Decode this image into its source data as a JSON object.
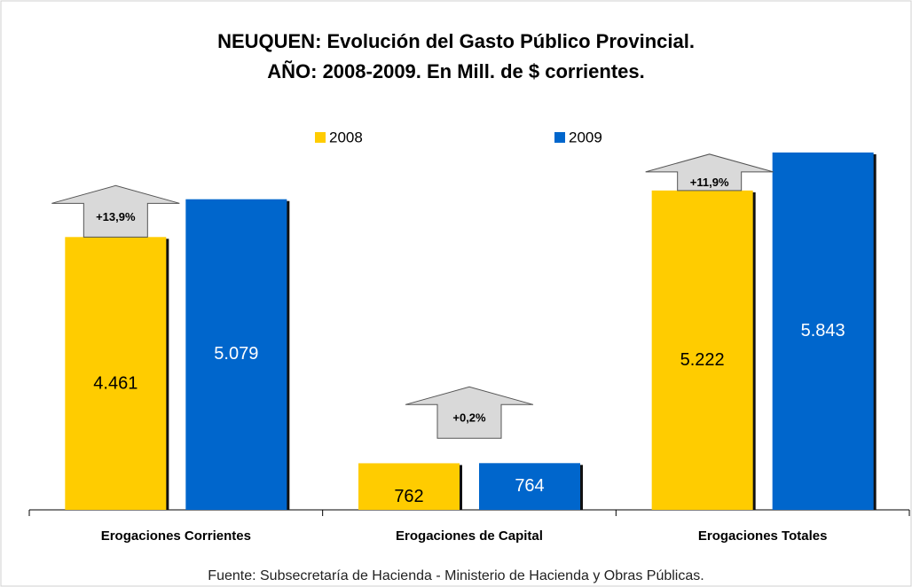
{
  "chart_data": {
    "type": "bar",
    "title": "NEUQUEN: Evolución del Gasto Público Provincial.",
    "subtitle": "AÑO: 2008-2009. En Mill. de $ corrientes.",
    "categories": [
      "Erogaciones Corrientes",
      "Erogaciones de Capital",
      "Erogaciones Totales"
    ],
    "series": [
      {
        "name": "2008",
        "color": "#ffcc00",
        "values": [
          4461,
          762,
          5222
        ],
        "value_labels": [
          "4.461",
          "762",
          "5.222"
        ]
      },
      {
        "name": "2009",
        "color": "#0066cc",
        "values": [
          5079,
          764,
          5843
        ],
        "value_labels": [
          "5.079",
          "764",
          "5.843"
        ]
      }
    ],
    "annotations": [
      "+13,9%",
      "+0,2%",
      "+11,9%"
    ],
    "source": "Fuente: Subsecretaría de Hacienda - Ministerio de Hacienda y Obras Públicas."
  }
}
